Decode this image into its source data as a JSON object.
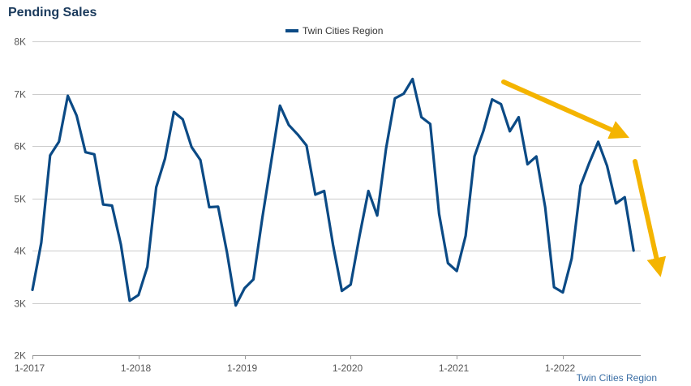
{
  "chart_data": {
    "type": "line",
    "title": "Pending Sales",
    "source_label": "Twin Cities Region",
    "xlabel": "",
    "ylabel": "",
    "x_tick_labels": [
      "1-2017",
      "1-2018",
      "1-2019",
      "1-2020",
      "1-2021",
      "1-2022"
    ],
    "y_tick_labels": [
      "2K",
      "3K",
      "4K",
      "5K",
      "6K",
      "7K",
      "8K"
    ],
    "y_ticks": [
      2000,
      3000,
      4000,
      5000,
      6000,
      7000,
      8000
    ],
    "ylim": [
      2000,
      8000
    ],
    "grid": true,
    "legend_position": "top-center",
    "colors": {
      "series": "#0b4a85",
      "arrows": "#f4b400",
      "grid": "#cccccc"
    },
    "annotations": [
      "downward-trend-arrow-gentle",
      "downward-trend-arrow-steep"
    ],
    "x": [
      "1-2017",
      "2-2017",
      "3-2017",
      "4-2017",
      "5-2017",
      "6-2017",
      "7-2017",
      "8-2017",
      "9-2017",
      "10-2017",
      "11-2017",
      "12-2017",
      "1-2018",
      "2-2018",
      "3-2018",
      "4-2018",
      "5-2018",
      "6-2018",
      "7-2018",
      "8-2018",
      "9-2018",
      "10-2018",
      "11-2018",
      "12-2018",
      "1-2019",
      "2-2019",
      "3-2019",
      "4-2019",
      "5-2019",
      "6-2019",
      "7-2019",
      "8-2019",
      "9-2019",
      "10-2019",
      "11-2019",
      "12-2019",
      "1-2020",
      "2-2020",
      "3-2020",
      "4-2020",
      "5-2020",
      "6-2020",
      "7-2020",
      "8-2020",
      "9-2020",
      "10-2020",
      "11-2020",
      "12-2020",
      "1-2021",
      "2-2021",
      "3-2021",
      "4-2021",
      "5-2021",
      "6-2021",
      "7-2021",
      "8-2021",
      "9-2021",
      "10-2021",
      "11-2021",
      "12-2021",
      "1-2022",
      "2-2022",
      "3-2022",
      "4-2022",
      "5-2022",
      "6-2022",
      "7-2022",
      "8-2022",
      "9-2022"
    ],
    "series": [
      {
        "name": "Twin Cities Region",
        "values": [
          3250,
          4150,
          5820,
          6080,
          6960,
          6580,
          5880,
          5840,
          4880,
          4860,
          4120,
          3040,
          3150,
          3690,
          5210,
          5760,
          6650,
          6510,
          5980,
          5730,
          4830,
          4840,
          3970,
          2950,
          3280,
          3450,
          4620,
          5690,
          6770,
          6400,
          6220,
          6010,
          5070,
          5140,
          4110,
          3230,
          3350,
          4280,
          5140,
          4670,
          5950,
          6910,
          7000,
          7280,
          6550,
          6420,
          4700,
          3760,
          3610,
          4280,
          5800,
          6280,
          6890,
          6800,
          6280,
          6550,
          5650,
          5800,
          4830,
          3300,
          3200,
          3850,
          5240,
          5680,
          6080,
          5620,
          4900,
          5020,
          4000
        ]
      }
    ]
  }
}
